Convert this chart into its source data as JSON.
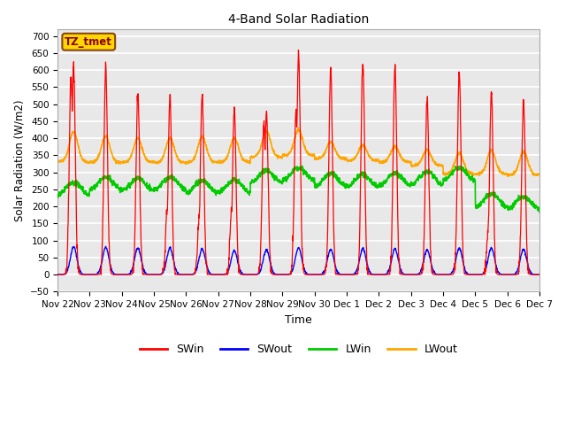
{
  "title": "4-Band Solar Radiation",
  "xlabel": "Time",
  "ylabel": "Solar Radiation (W/m2)",
  "ylim": [
    -50,
    720
  ],
  "yticks": [
    -50,
    0,
    50,
    100,
    150,
    200,
    250,
    300,
    350,
    400,
    450,
    500,
    550,
    600,
    650,
    700
  ],
  "annotation_text": "TZ_tmet",
  "annotation_color": "#8B0000",
  "annotation_bg": "#FFD700",
  "annotation_border": "#8B4513",
  "bg_light": "#E8E8E8",
  "bg_dark": "#D0D0D0",
  "grid_color": "white",
  "colors": {
    "SWin": "#FF0000",
    "SWout": "#0000FF",
    "LWin": "#00CC00",
    "LWout": "#FFA500"
  },
  "n_days": 15,
  "swin_peaks": [
    615,
    610,
    535,
    520,
    530,
    487,
    477,
    646,
    604,
    623,
    615,
    510,
    595,
    537,
    510
  ],
  "swin_secondary": [
    575,
    0,
    0,
    195,
    185,
    195,
    445,
    473,
    0,
    0,
    0,
    0,
    0,
    150,
    0
  ],
  "swout_peaks": [
    82,
    80,
    78,
    78,
    75,
    70,
    72,
    78,
    74,
    76,
    75,
    72,
    76,
    78,
    74
  ],
  "lwin_base": [
    252,
    268,
    265,
    267,
    258,
    260,
    288,
    295,
    278,
    276,
    280,
    284,
    295,
    218,
    210
  ],
  "lwout_base": [
    330,
    330,
    330,
    328,
    330,
    330,
    345,
    350,
    340,
    335,
    330,
    320,
    295,
    295,
    292
  ],
  "lwout_peaks": [
    420,
    405,
    400,
    400,
    405,
    400,
    420,
    425,
    390,
    380,
    375,
    365,
    358,
    365,
    360
  ]
}
